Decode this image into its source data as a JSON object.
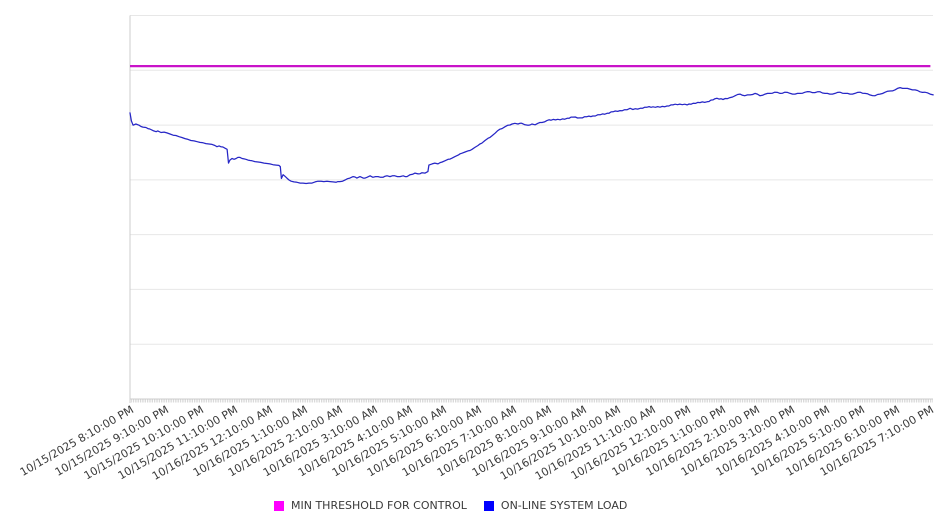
{
  "colors": {
    "grid": "#e7e7e7",
    "axis": "#cccccc",
    "tick": "#c9c9c9",
    "label_text": "#3a3a3a",
    "background": "#ffffff"
  },
  "chart_data": {
    "type": "line",
    "title": "",
    "x_tick_labels": [
      "10/15/2025 8:10:00 PM",
      "10/15/2025 9:10:00 PM",
      "10/15/2025 10:10:00 PM",
      "10/15/2025 11:10:00 PM",
      "10/16/2025 12:10:00 AM",
      "10/16/2025 1:10:00 AM",
      "10/16/2025 2:10:00 AM",
      "10/16/2025 3:10:00 AM",
      "10/16/2025 4:10:00 AM",
      "10/16/2025 5:10:00 AM",
      "10/16/2025 6:10:00 AM",
      "10/16/2025 7:10:00 AM",
      "10/16/2025 8:10:00 AM",
      "10/16/2025 9:10:00 AM",
      "10/16/2025 10:10:00 AM",
      "10/16/2025 11:10:00 AM",
      "10/16/2025 12:10:00 PM",
      "10/16/2025 1:10:00 PM",
      "10/16/2025 2:10:00 PM",
      "10/16/2025 3:10:00 PM",
      "10/16/2025 4:10:00 PM",
      "10/16/2025 5:10:00 PM",
      "10/16/2025 6:10:00 PM",
      "10/16/2025 7:10:00 PM"
    ],
    "x_unit": "hours since 10/15/2025 8:10:00 PM",
    "ylim": [
      0,
      100
    ],
    "y_tick_labels_visible": false,
    "grid": true,
    "legend_position": "bottom",
    "series": [
      {
        "name": "MIN THRESHOLD FOR CONTROL",
        "type": "threshold-line",
        "color": "#c913c9",
        "legend_color": "#ff00ff",
        "value": 86.8,
        "x_range_hours": [
          0,
          23.0
        ]
      },
      {
        "name": "ON-LINE SYSTEM LOAD",
        "type": "line",
        "color": "#2626c6",
        "legend_color": "#0000ff",
        "points": [
          [
            0,
            74.6
          ],
          [
            0.04,
            72.5
          ],
          [
            0.09,
            71.4
          ],
          [
            0.17,
            71.7
          ],
          [
            0.26,
            71.4
          ],
          [
            0.37,
            70.9
          ],
          [
            0.46,
            70.8
          ],
          [
            0.57,
            70.4
          ],
          [
            0.66,
            70
          ],
          [
            0.75,
            69.7
          ],
          [
            0.8,
            69.9
          ],
          [
            0.89,
            69.5
          ],
          [
            0.98,
            69.6
          ],
          [
            1.06,
            69.4
          ],
          [
            1.15,
            69.1
          ],
          [
            1.24,
            68.8
          ],
          [
            1.32,
            68.7
          ],
          [
            1.41,
            68.4
          ],
          [
            1.49,
            68.2
          ],
          [
            1.58,
            67.9
          ],
          [
            1.67,
            67.7
          ],
          [
            1.75,
            67.4
          ],
          [
            1.84,
            67.3
          ],
          [
            1.93,
            67.1
          ],
          [
            2.01,
            66.9
          ],
          [
            2.1,
            66.8
          ],
          [
            2.18,
            66.6
          ],
          [
            2.27,
            66.5
          ],
          [
            2.36,
            66.4
          ],
          [
            2.44,
            66.1
          ],
          [
            2.5,
            65.8
          ],
          [
            2.56,
            66
          ],
          [
            2.61,
            65.8
          ],
          [
            2.67,
            65.7
          ],
          [
            2.73,
            65.4
          ],
          [
            2.79,
            65.1
          ],
          [
            2.83,
            61.5
          ],
          [
            2.87,
            62.3
          ],
          [
            2.93,
            62.7
          ],
          [
            2.99,
            62.5
          ],
          [
            3.05,
            62.7
          ],
          [
            3.1,
            63
          ],
          [
            3.16,
            63
          ],
          [
            3.22,
            62.7
          ],
          [
            3.28,
            62.6
          ],
          [
            3.33,
            62.5
          ],
          [
            3.39,
            62.3
          ],
          [
            3.45,
            62.2
          ],
          [
            3.51,
            62.1
          ],
          [
            3.59,
            61.9
          ],
          [
            3.68,
            61.8
          ],
          [
            3.76,
            61.7
          ],
          [
            3.85,
            61.5
          ],
          [
            3.94,
            61.4
          ],
          [
            4.02,
            61.3
          ],
          [
            4.11,
            61.1
          ],
          [
            4.2,
            61
          ],
          [
            4.28,
            60.9
          ],
          [
            4.32,
            60.6
          ],
          [
            4.35,
            57.5
          ],
          [
            4.4,
            58.5
          ],
          [
            4.45,
            58.1
          ],
          [
            4.51,
            57.6
          ],
          [
            4.57,
            57.1
          ],
          [
            4.63,
            56.8
          ],
          [
            4.71,
            56.6
          ],
          [
            4.8,
            56.5
          ],
          [
            4.89,
            56.3
          ],
          [
            4.97,
            56.3
          ],
          [
            5.06,
            56.2
          ],
          [
            5.14,
            56.3
          ],
          [
            5.23,
            56.3
          ],
          [
            5.32,
            56.6
          ],
          [
            5.4,
            56.8
          ],
          [
            5.49,
            56.8
          ],
          [
            5.57,
            56.7
          ],
          [
            5.66,
            56.8
          ],
          [
            5.75,
            56.7
          ],
          [
            5.83,
            56.6
          ],
          [
            5.92,
            56.5
          ],
          [
            6.03,
            56.7
          ],
          [
            6.18,
            57.1
          ],
          [
            6.32,
            57.6
          ],
          [
            6.41,
            58
          ],
          [
            6.52,
            57.6
          ],
          [
            6.61,
            58
          ],
          [
            6.7,
            57.6
          ],
          [
            6.81,
            57.8
          ],
          [
            6.9,
            58.2
          ],
          [
            6.98,
            57.8
          ],
          [
            7.13,
            58
          ],
          [
            7.27,
            57.8
          ],
          [
            7.39,
            58.2
          ],
          [
            7.47,
            58
          ],
          [
            7.61,
            58.2
          ],
          [
            7.76,
            58
          ],
          [
            7.85,
            58.2
          ],
          [
            7.96,
            58
          ],
          [
            8.05,
            58.5
          ],
          [
            8.19,
            58.9
          ],
          [
            8.28,
            58.7
          ],
          [
            8.39,
            59
          ],
          [
            8.48,
            58.9
          ],
          [
            8.56,
            59.3
          ],
          [
            8.59,
            61
          ],
          [
            8.68,
            61.3
          ],
          [
            8.76,
            61.5
          ],
          [
            8.85,
            61.3
          ],
          [
            8.97,
            61.8
          ],
          [
            9.05,
            62.1
          ],
          [
            9.14,
            62.5
          ],
          [
            9.25,
            62.8
          ],
          [
            9.34,
            63.2
          ],
          [
            9.43,
            63.6
          ],
          [
            9.54,
            64.1
          ],
          [
            9.63,
            64.4
          ],
          [
            9.71,
            64.7
          ],
          [
            9.83,
            65.1
          ],
          [
            9.91,
            65.6
          ],
          [
            10,
            66.1
          ],
          [
            10.11,
            66.7
          ],
          [
            10.2,
            67.4
          ],
          [
            10.29,
            68
          ],
          [
            10.4,
            68.6
          ],
          [
            10.49,
            69.3
          ],
          [
            10.57,
            70
          ],
          [
            10.69,
            70.5
          ],
          [
            10.78,
            71
          ],
          [
            10.86,
            71.4
          ],
          [
            10.98,
            71.7
          ],
          [
            11.06,
            71.9
          ],
          [
            11.15,
            71.7
          ],
          [
            11.26,
            71.9
          ],
          [
            11.35,
            71.5
          ],
          [
            11.44,
            71.4
          ],
          [
            11.55,
            71.7
          ],
          [
            11.64,
            71.5
          ],
          [
            11.72,
            71.9
          ],
          [
            11.84,
            72.1
          ],
          [
            11.98,
            72.6
          ],
          [
            12.16,
            72.9
          ],
          [
            12.36,
            72.8
          ],
          [
            12.56,
            73.2
          ],
          [
            12.73,
            73.5
          ],
          [
            12.93,
            73.3
          ],
          [
            13.13,
            73.6
          ],
          [
            13.3,
            73.8
          ],
          [
            13.51,
            74.1
          ],
          [
            13.71,
            74.5
          ],
          [
            13.88,
            74.9
          ],
          [
            14.08,
            75.2
          ],
          [
            14.28,
            75.4
          ],
          [
            14.37,
            75.8
          ],
          [
            14.45,
            75.5
          ],
          [
            14.66,
            75.8
          ],
          [
            14.86,
            76.1
          ],
          [
            15.03,
            76.2
          ],
          [
            15.23,
            76.1
          ],
          [
            15.43,
            76.4
          ],
          [
            15.6,
            76.7
          ],
          [
            15.8,
            76.9
          ],
          [
            16.01,
            76.7
          ],
          [
            16.18,
            77.1
          ],
          [
            16.38,
            77.3
          ],
          [
            16.58,
            77.5
          ],
          [
            16.75,
            78
          ],
          [
            16.87,
            78.4
          ],
          [
            17.04,
            78.1
          ],
          [
            17.24,
            78.6
          ],
          [
            17.39,
            79.1
          ],
          [
            17.53,
            79.5
          ],
          [
            17.67,
            79.1
          ],
          [
            17.82,
            79.3
          ],
          [
            17.96,
            79.7
          ],
          [
            18.1,
            79.1
          ],
          [
            18.25,
            79.5
          ],
          [
            18.39,
            79.7
          ],
          [
            18.53,
            80
          ],
          [
            18.68,
            79.7
          ],
          [
            18.82,
            80
          ],
          [
            18.97,
            79.7
          ],
          [
            19.11,
            79.5
          ],
          [
            19.25,
            79.7
          ],
          [
            19.4,
            80
          ],
          [
            19.54,
            80.1
          ],
          [
            19.68,
            79.9
          ],
          [
            19.83,
            80.1
          ],
          [
            19.97,
            79.7
          ],
          [
            20.11,
            79.5
          ],
          [
            20.26,
            79.7
          ],
          [
            20.4,
            80
          ],
          [
            20.55,
            79.7
          ],
          [
            20.69,
            79.5
          ],
          [
            20.83,
            79.7
          ],
          [
            20.98,
            80
          ],
          [
            21.12,
            79.7
          ],
          [
            21.26,
            79.3
          ],
          [
            21.41,
            79.1
          ],
          [
            21.55,
            79.5
          ],
          [
            21.7,
            80
          ],
          [
            21.84,
            80.3
          ],
          [
            21.98,
            80.6
          ],
          [
            22.13,
            81.2
          ],
          [
            22.27,
            81
          ],
          [
            22.41,
            80.8
          ],
          [
            22.56,
            80.6
          ],
          [
            22.7,
            80.1
          ],
          [
            22.84,
            80
          ],
          [
            22.99,
            79.5
          ],
          [
            23.08,
            79.3
          ]
        ]
      }
    ]
  }
}
